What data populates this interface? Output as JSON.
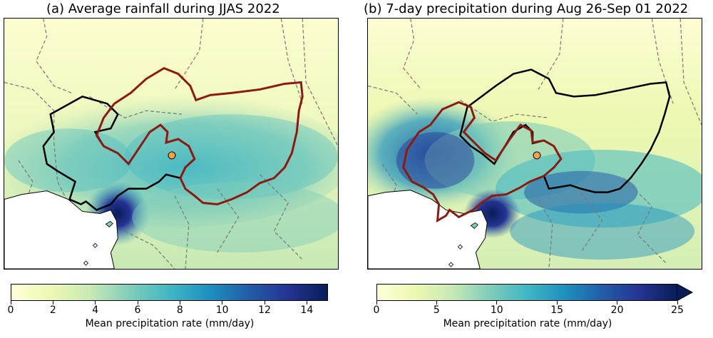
{
  "chart_data": [
    {
      "type": "heatmap",
      "title": "(a) Average rainfall during JJAS 2022",
      "colorbar": {
        "label": "Mean precipitation rate (mm/day)",
        "range": [
          0,
          15
        ],
        "ticks": [
          0,
          2,
          4,
          6,
          8,
          10,
          12,
          14
        ],
        "extend": "neither",
        "colormap": [
          "#ffffd9",
          "#edf8b1",
          "#c7e9b4",
          "#7fcdbb",
          "#41b6c4",
          "#1d91c0",
          "#225ea8",
          "#253494",
          "#081d58"
        ]
      },
      "overlays": [
        "country borders (dashed grey)",
        "basin outline (black)",
        "basin outline (dark red)",
        "location marker (orange)"
      ]
    },
    {
      "type": "heatmap",
      "title": "(b) 7-day precipitation during Aug 26-Sep 01 2022",
      "colorbar": {
        "label": "Mean precipitation rate (mm/day)",
        "range": [
          0,
          25
        ],
        "ticks": [
          0,
          5,
          10,
          15,
          20,
          25
        ],
        "extend": "max",
        "colormap": [
          "#ffffd9",
          "#edf8b1",
          "#c7e9b4",
          "#7fcdbb",
          "#41b6c4",
          "#1d91c0",
          "#225ea8",
          "#253494",
          "#081d58"
        ]
      },
      "overlays": [
        "country borders (dashed grey)",
        "basin outline (black)",
        "basin outline (dark red)",
        "location marker (orange)"
      ]
    }
  ],
  "colors": {
    "black_outline": "#000000",
    "red_outline": "#8b1a10",
    "marker": "#f5a34a",
    "borders": "#777777"
  }
}
